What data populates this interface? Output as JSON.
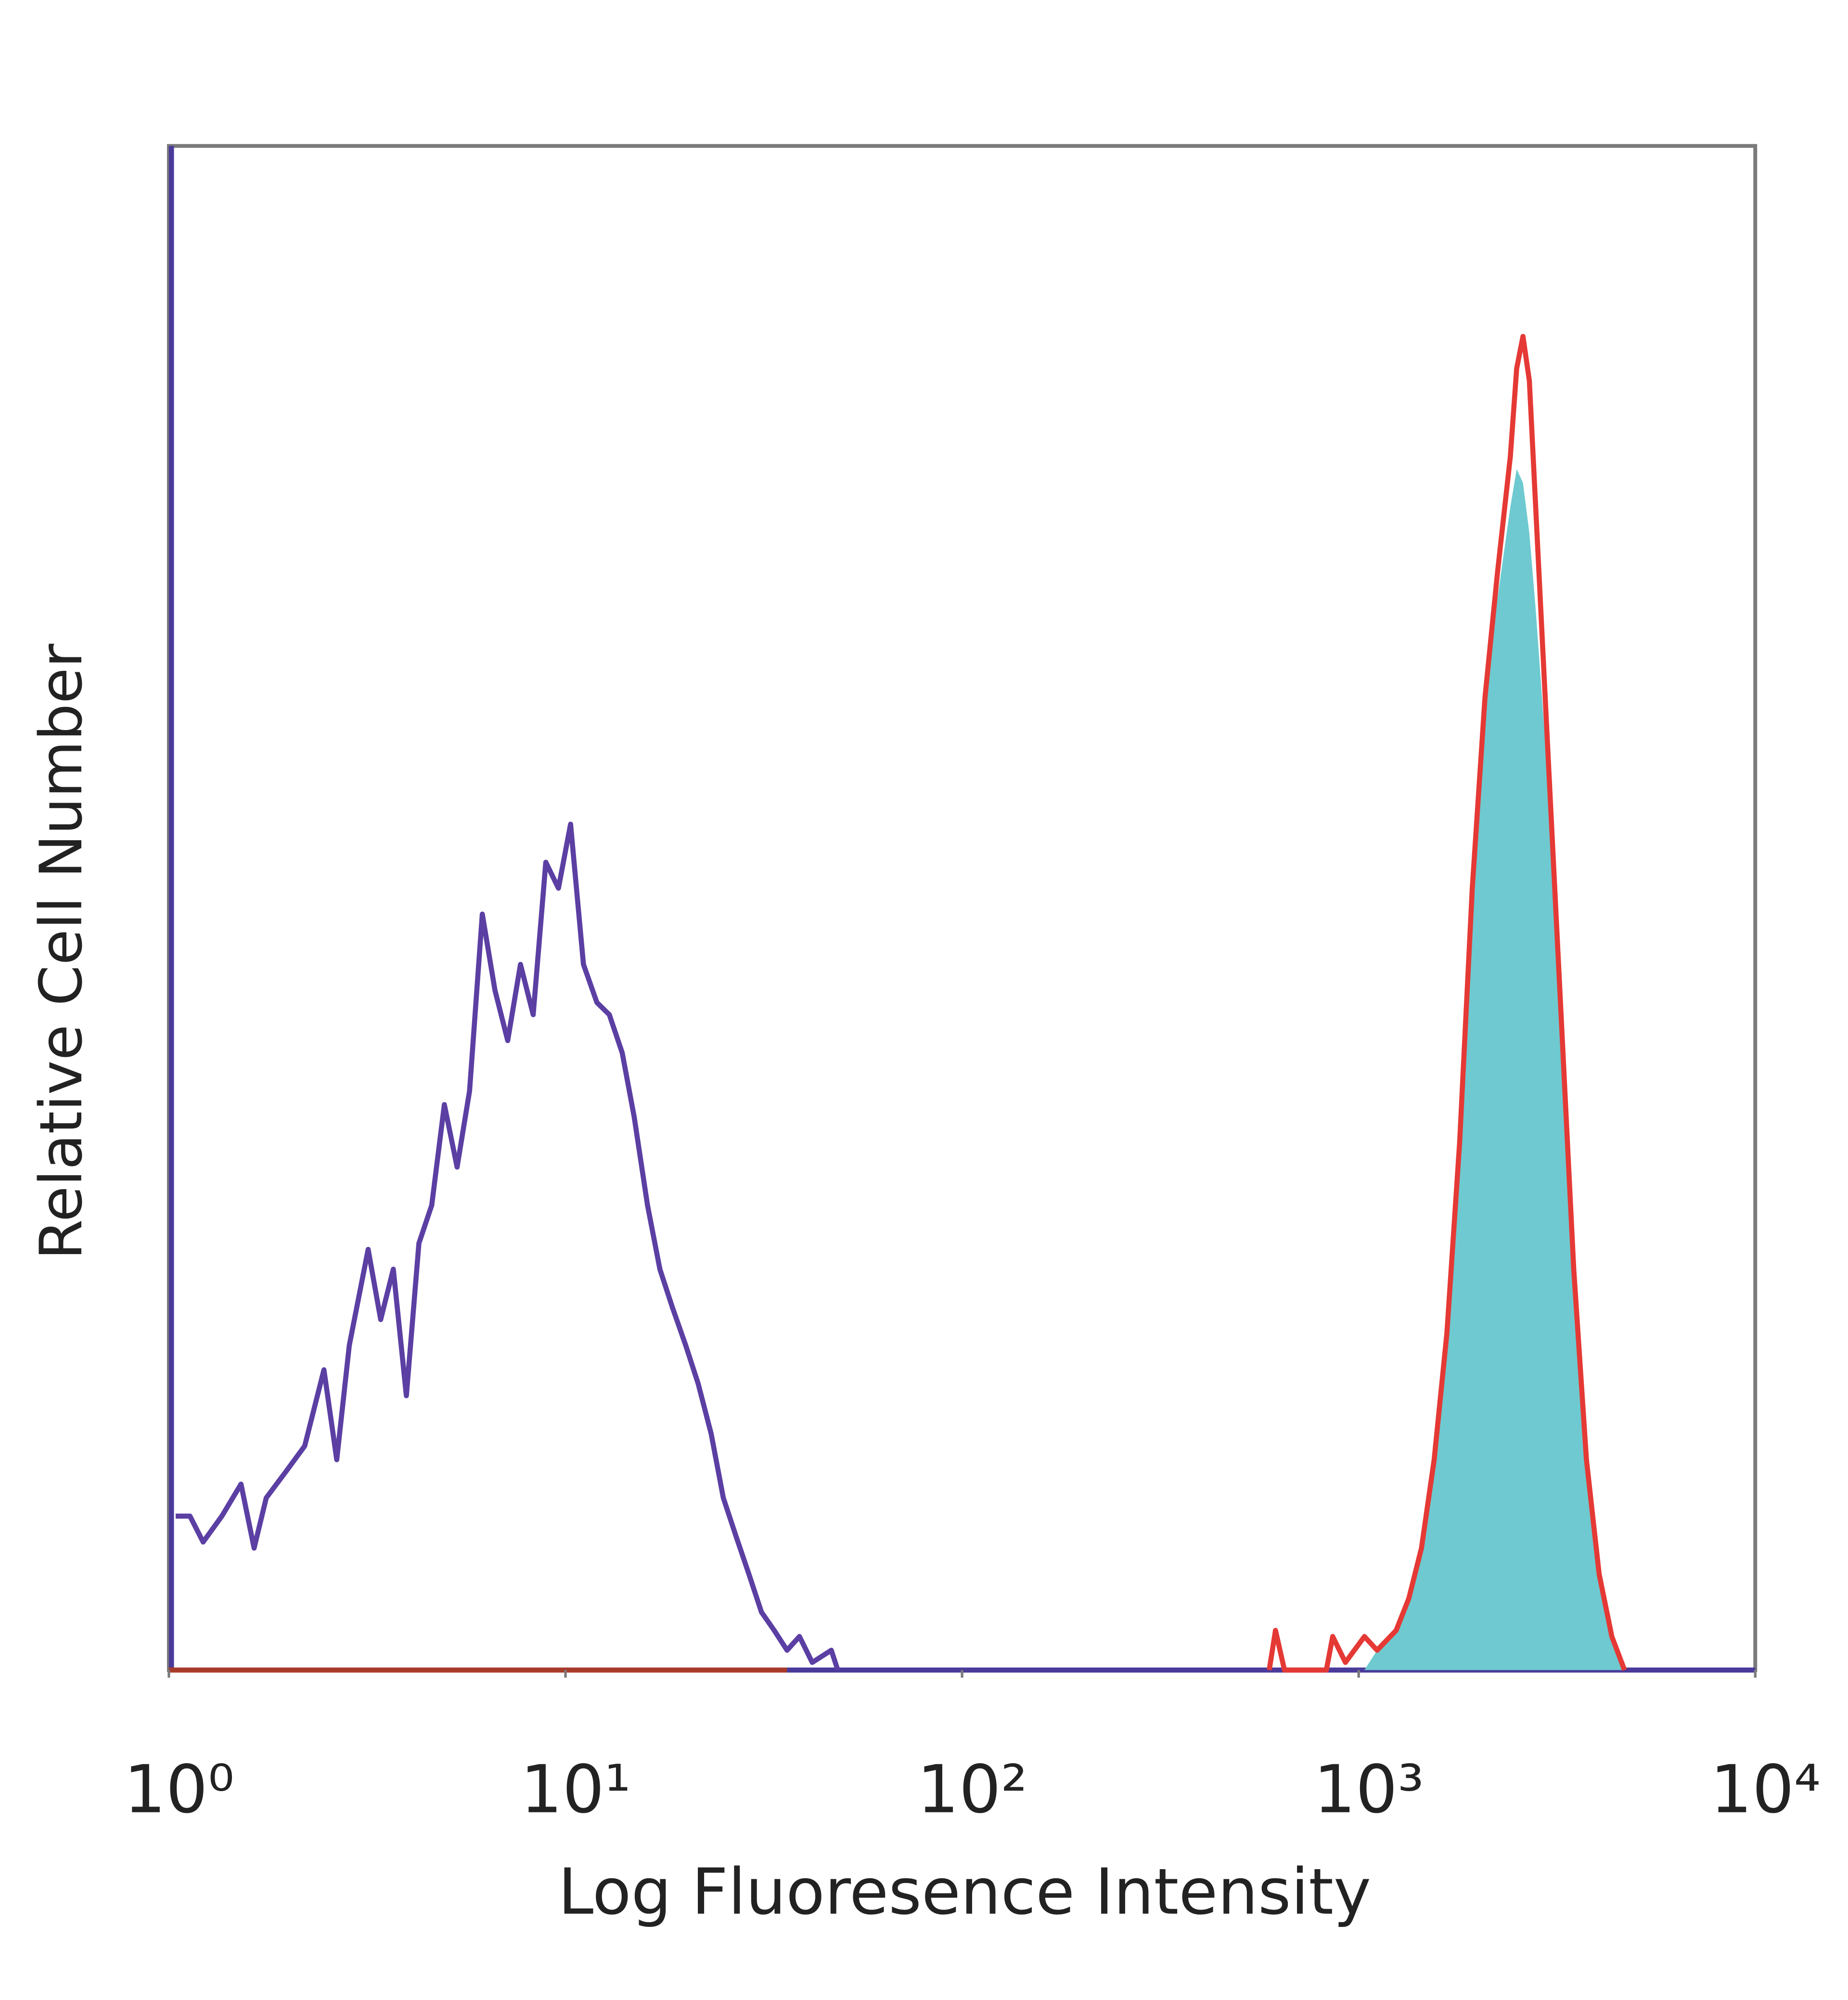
{
  "chart_data": {
    "type": "line",
    "xlabel": "Log Fluoresence Intensity",
    "ylabel": "Relative Cell Number",
    "xscale": "log",
    "xlim": [
      1,
      10000
    ],
    "ylim": [
      0,
      100
    ],
    "xticks": [
      {
        "value": 1,
        "label": "10⁰"
      },
      {
        "value": 10,
        "label": "10¹"
      },
      {
        "value": 100,
        "label": "10²"
      },
      {
        "value": 1000,
        "label": "10³"
      },
      {
        "value": 10000,
        "label": "10⁴"
      }
    ],
    "series": [
      {
        "color": "#5b3fa3",
        "filled": false,
        "x": [
          1.04,
          1.13,
          1.22,
          1.36,
          1.52,
          1.64,
          1.76,
          1.97,
          2.2,
          2.46,
          2.65,
          2.85,
          3.18,
          3.42,
          3.68,
          3.97,
          4.27,
          4.6,
          4.95,
          5.33,
          5.73,
          6.17,
          6.64,
          7.15,
          7.7,
          8.29,
          8.92,
          9.6,
          10.3,
          11.1,
          12.0,
          12.9,
          13.9,
          14.9,
          16.1,
          17.3,
          18.6,
          20.1,
          21.6,
          23.3,
          25.0,
          26.9,
          29.0,
          31.2,
          33.6,
          36.2,
          38.9,
          41.9,
          46.8,
          48.6
        ],
        "values": [
          10.1,
          10.1,
          8.4,
          10.1,
          12.2,
          8.0,
          11.3,
          13.0,
          14.7,
          19.7,
          13.8,
          21.3,
          27.6,
          23.0,
          26.3,
          18.0,
          28.0,
          30.5,
          37.1,
          33.0,
          38.0,
          49.6,
          44.6,
          41.3,
          46.3,
          43.0,
          53.0,
          51.3,
          55.5,
          46.3,
          43.8,
          43.0,
          40.5,
          36.3,
          30.5,
          26.3,
          23.8,
          21.3,
          18.8,
          15.5,
          11.3,
          8.8,
          6.3,
          3.8,
          2.6,
          1.3,
          2.2,
          0.5,
          1.3,
          0
        ]
      },
      {
        "color": "#6fc9d0",
        "filled": true,
        "x": [
          1034,
          1113,
          1243,
          1338,
          1440,
          1550,
          1669,
          1797,
          1934,
          2082,
          2241,
          2412,
          2503,
          2596,
          2694,
          2795,
          3009,
          3239,
          3486,
          3753,
          4040,
          4349,
          4681
        ],
        "values": [
          0,
          1.3,
          2.6,
          4.7,
          8.0,
          13.8,
          22.1,
          34.6,
          51.3,
          63.8,
          70.4,
          76.3,
          78.8,
          77.9,
          74.6,
          69.6,
          58.0,
          43.0,
          26.3,
          13.8,
          6.3,
          2.2,
          0
        ]
      },
      {
        "color": "#e53935",
        "filled": false,
        "x": [
          595,
          617,
          650,
          829,
          860,
          926,
          1034,
          1113,
          1243,
          1338,
          1440,
          1550,
          1669,
          1797,
          1934,
          2082,
          2241,
          2412,
          2503,
          2596,
          2694,
          2795,
          3009,
          3239,
          3486,
          3753,
          4040,
          4349,
          4681
        ],
        "values": [
          0,
          2.6,
          0,
          0,
          2.2,
          0.5,
          2.2,
          1.3,
          2.6,
          4.7,
          8.0,
          13.8,
          22.1,
          34.6,
          51.3,
          63.8,
          72.1,
          79.6,
          85.4,
          87.5,
          84.6,
          76.3,
          59.6,
          43.0,
          26.3,
          13.8,
          6.3,
          2.2,
          0
        ]
      }
    ]
  }
}
